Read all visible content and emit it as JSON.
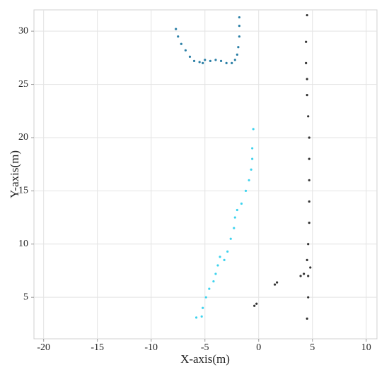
{
  "chart_data": {
    "type": "scatter",
    "x_label": "X-axis(m)",
    "y_label": "Y-axis(m)",
    "xlim": [
      -20.9,
      11
    ],
    "ylim": [
      1.1,
      32
    ],
    "xticks": [
      -20,
      -15,
      -10,
      -5,
      0,
      5,
      10
    ],
    "yticks": [
      5,
      10,
      15,
      20,
      25,
      30
    ],
    "grid": true,
    "series": [
      {
        "color": "#2b7fa6",
        "x": [
          -7.7,
          -7.5,
          -7.2,
          -6.8,
          -6.4,
          -6.0,
          -5.5,
          -5.2,
          -5.0,
          -4.5,
          -4.0,
          -3.5,
          -3.0,
          -2.5,
          -2.2,
          -2.0,
          -1.9,
          -1.8,
          -1.8,
          -1.8
        ],
        "y": [
          30.2,
          29.5,
          28.8,
          28.2,
          27.6,
          27.2,
          27.1,
          27.0,
          27.3,
          27.2,
          27.3,
          27.2,
          27.0,
          27.0,
          27.3,
          27.8,
          28.5,
          29.5,
          30.5,
          31.3
        ]
      },
      {
        "color": "#3fd3ee",
        "x": [
          -5.8,
          -5.3,
          -5.2,
          -4.9,
          -4.6,
          -4.2,
          -4.0,
          -3.8,
          -3.6,
          -3.2,
          -2.9,
          -2.6,
          -2.3,
          -2.2,
          -2.0,
          -1.6,
          -1.2,
          -0.9,
          -0.7,
          -0.6,
          -0.6,
          -0.5
        ],
        "y": [
          3.1,
          3.2,
          4.0,
          5.0,
          5.8,
          6.5,
          7.2,
          8.0,
          8.8,
          8.5,
          9.3,
          10.5,
          11.5,
          12.5,
          13.2,
          13.8,
          15.0,
          16.0,
          17.0,
          18.0,
          19.0,
          20.8
        ]
      },
      {
        "color": "#333333",
        "x": [
          4.5,
          4.6,
          4.6,
          4.8,
          4.5,
          4.6,
          4.7,
          4.7,
          4.7,
          4.7,
          4.7,
          4.6,
          4.5,
          4.5,
          4.4,
          4.4,
          4.5,
          -0.4,
          -0.2,
          1.5,
          1.7,
          3.9,
          4.2
        ],
        "y": [
          3.0,
          5.0,
          7.0,
          7.8,
          8.5,
          10.0,
          12.0,
          14.0,
          16.0,
          18.0,
          20.0,
          22.0,
          24.0,
          25.5,
          27.0,
          29.0,
          31.5,
          4.2,
          4.4,
          6.2,
          6.4,
          7.0,
          7.2
        ]
      }
    ]
  }
}
